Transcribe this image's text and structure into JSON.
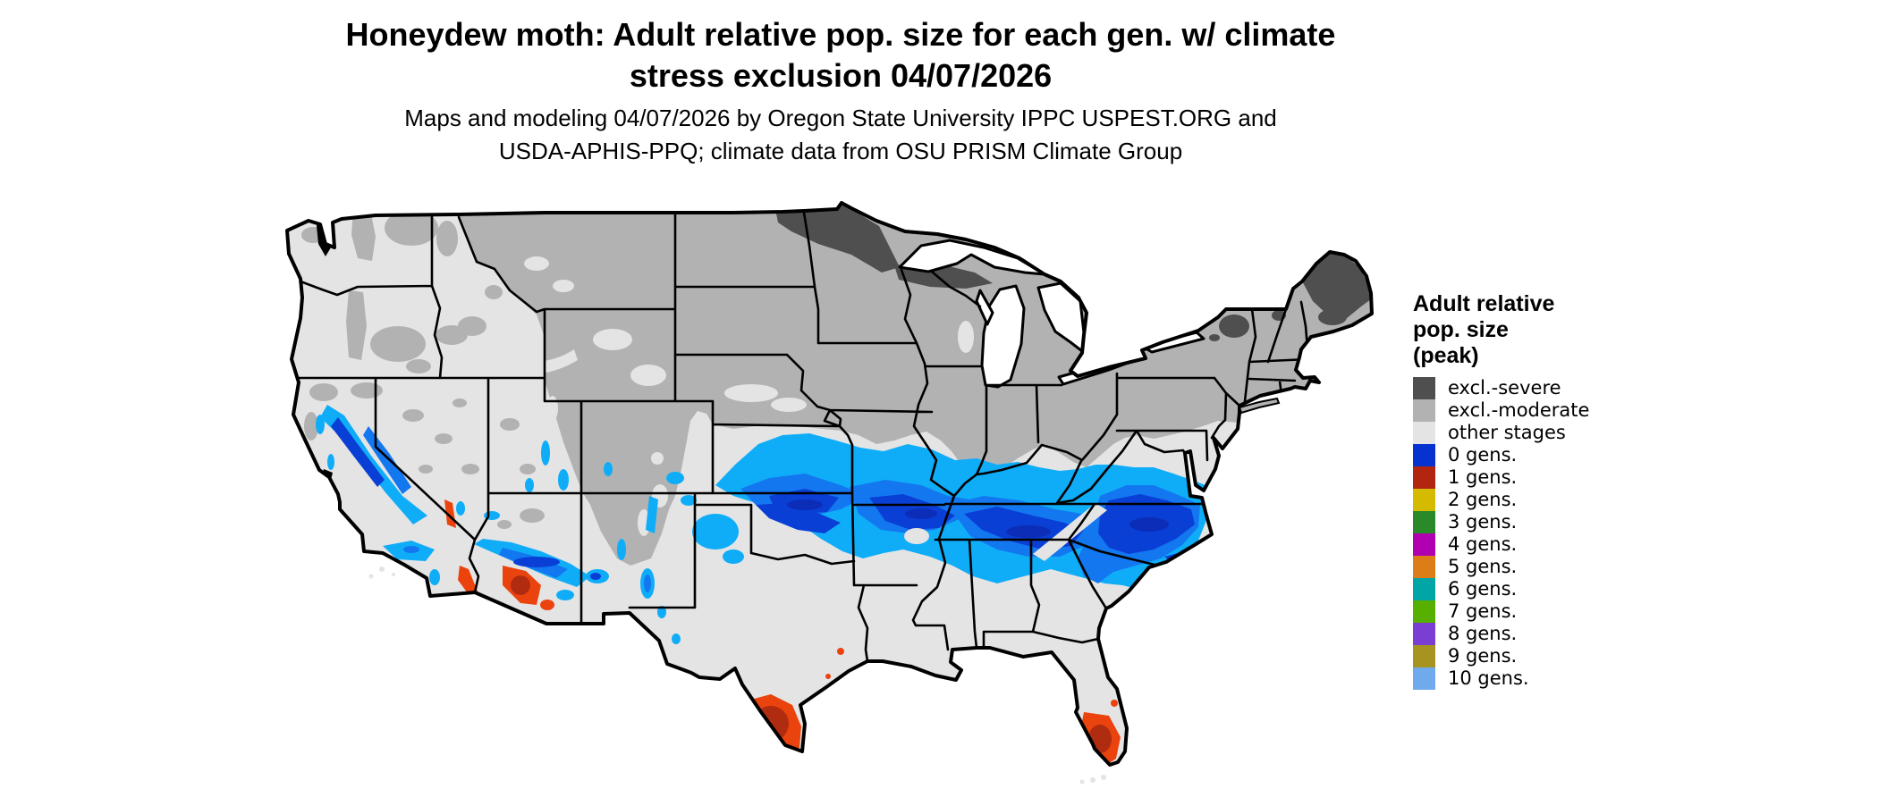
{
  "title": {
    "line1": "Honeydew moth: Adult relative pop. size for each gen. w/ climate",
    "line2": "stress exclusion 04/07/2026"
  },
  "subtitle": {
    "line1": "Maps and modeling 04/07/2026 by Oregon State University IPPC USPEST.ORG and",
    "line2": "USDA-APHIS-PPQ; climate data from OSU PRISM Climate Group"
  },
  "map": {
    "region": "Contiguous United States",
    "content": "Raster map of adult relative population size per generation with climate stress exclusion zones; blue band (0 gens.) across the mid-latitudes and southern Appalachians/Carolinas, orange-red (1 gens.) in south Texas, south Florida and southern Arizona, gray exclusion zones across the northern states and mountains."
  },
  "legend": {
    "title_lines": [
      "Adult relative",
      "pop. size",
      "(peak)"
    ],
    "items": [
      {
        "label": "excl.-severe",
        "color": "#4f4f4f"
      },
      {
        "label": "excl.-moderate",
        "color": "#b2b2b2"
      },
      {
        "label": "other stages",
        "color": "#e4e4e4"
      },
      {
        "label": "0 gens.",
        "color": "#0633cf"
      },
      {
        "label": "1 gens.",
        "color": "#b2260f"
      },
      {
        "label": "2 gens.",
        "color": "#d4bb00"
      },
      {
        "label": "3 gens.",
        "color": "#2a8a2a"
      },
      {
        "label": "4 gens.",
        "color": "#b000b0"
      },
      {
        "label": "5 gens.",
        "color": "#dd7d18"
      },
      {
        "label": "6 gens.",
        "color": "#00a5a5"
      },
      {
        "label": "7 gens.",
        "color": "#57b000"
      },
      {
        "label": "8 gens.",
        "color": "#7b3ed2"
      },
      {
        "label": "9 gens.",
        "color": "#a69320"
      },
      {
        "label": "10 gens.",
        "color": "#6fabec"
      }
    ]
  },
  "colors": {
    "background": "#ffffff",
    "border": "#000000",
    "water": "#ffffff",
    "other_stages": "#e4e4e4",
    "excl_moderate": "#b2b2b2",
    "excl_severe": "#4f4f4f",
    "gen0_shade_light": "#0fadf8",
    "gen0_shade_mid": "#1377f0",
    "gen0_shade_dark": "#0a3fd6",
    "gen0_shade_deep": "#0b2db8",
    "gen1_shade_bright": "#ea430e",
    "gen1_shade_dark": "#b02c10"
  }
}
